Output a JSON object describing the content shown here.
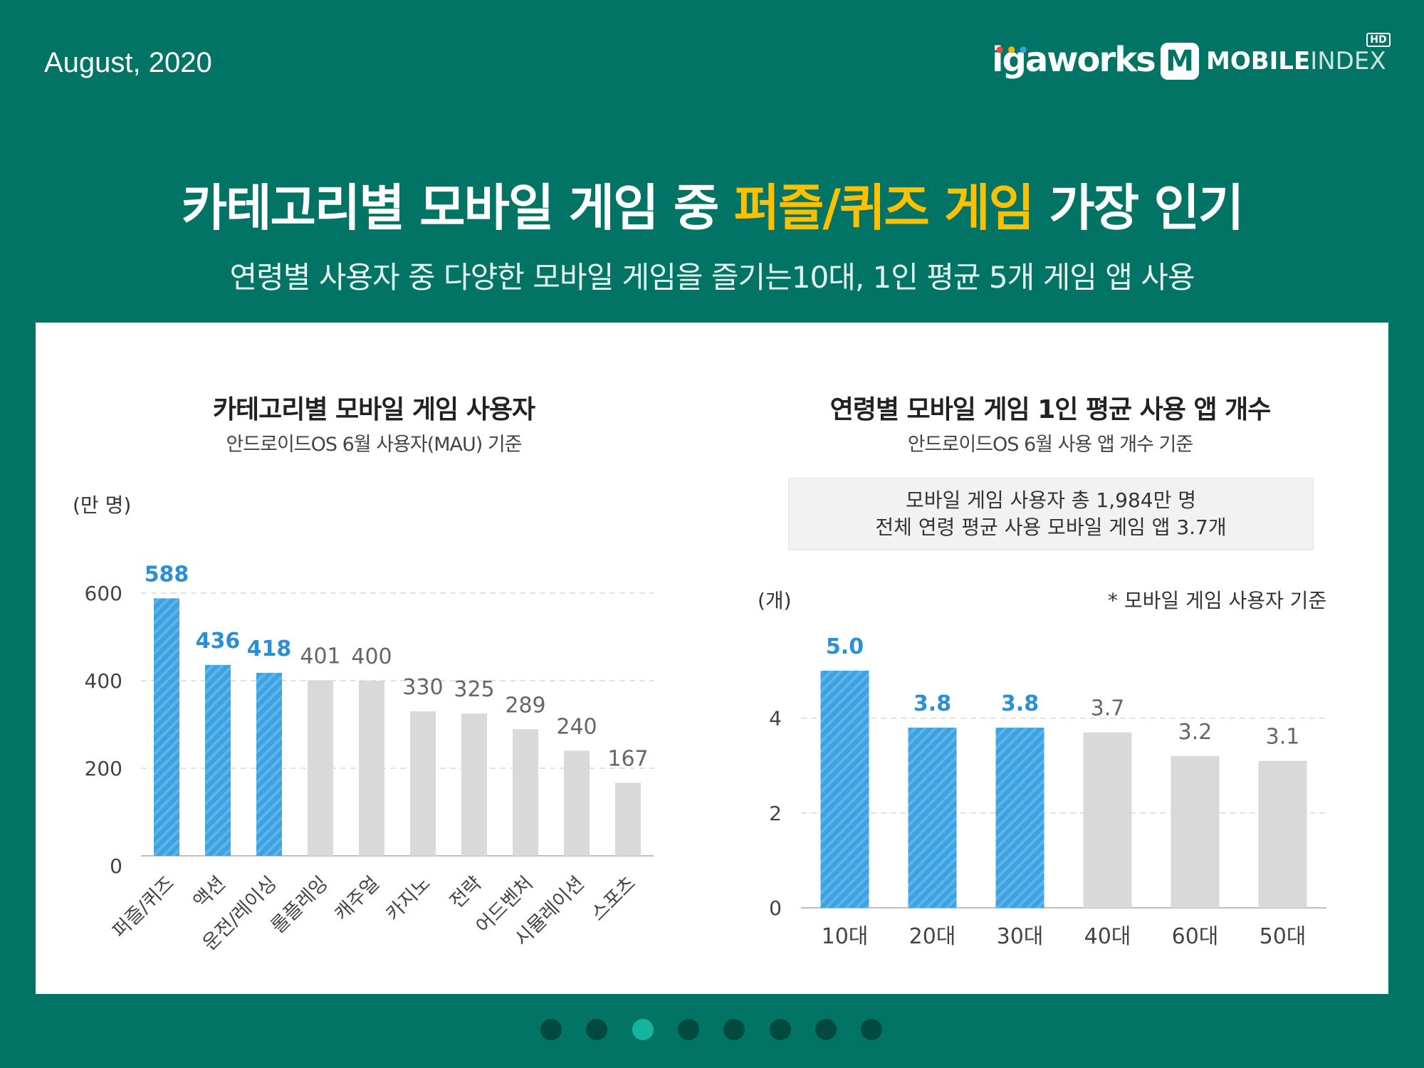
{
  "header": {
    "date": "August, 2020",
    "brand_left": "igaworks",
    "brand_right_mark": "M",
    "brand_right_bold": "MOBILE",
    "brand_right_light": "INDEX",
    "brand_right_badge": "HD"
  },
  "headline": {
    "part1": "카테고리별 모바일 게임 중 ",
    "highlight": "퍼즐/퀴즈 게임",
    "part2": " 가장 인기"
  },
  "subline": "연령별 사용자 중 다양한 모바일 게임을 즐기는10대, 1인 평균 5개 게임 앱 사용",
  "colors": {
    "background": "#027465",
    "highlight": "#ffc000",
    "blue_bar": "#3ca2e0",
    "blue_label": "#2b8fd6",
    "gray_bar": "#d9d9d9",
    "gray_label": "#666666"
  },
  "info_box": {
    "line1": "모바일 게임 사용자 총 1,984만 명",
    "line2": "전체 연령 평균 사용 모바일 게임 앱 3.7개"
  },
  "chart_data": [
    {
      "type": "bar",
      "title": "카테고리별 모바일 게임 사용자",
      "subtitle": "안드로이드OS 6월 사용자(MAU) 기준",
      "unit": "(만 명)",
      "categories": [
        "퍼즐/퀴즈",
        "액션",
        "운전/레이싱",
        "롤플레잉",
        "캐주얼",
        "카지노",
        "전략",
        "어드벤처",
        "시뮬레이션",
        "스포츠"
      ],
      "values": [
        588,
        436,
        418,
        401,
        400,
        330,
        325,
        289,
        240,
        167
      ],
      "highlighted": [
        true,
        true,
        true,
        false,
        false,
        false,
        false,
        false,
        false,
        false
      ],
      "yticks": [
        0,
        200,
        400,
        600
      ],
      "ylim": [
        0,
        640
      ],
      "grid": true
    },
    {
      "type": "bar",
      "title": "연령별 모바일 게임 1인 평균 사용 앱 개수",
      "subtitle": "안드로이드OS 6월 사용 앱 개수 기준",
      "unit": "(개)",
      "note": "* 모바일 게임 사용자 기준",
      "categories": [
        "10대",
        "20대",
        "30대",
        "40대",
        "60대",
        "50대"
      ],
      "values": [
        5.0,
        3.8,
        3.8,
        3.7,
        3.2,
        3.1
      ],
      "labels": [
        "5.0",
        "3.8",
        "3.8",
        "3.7",
        "3.2",
        "3.1"
      ],
      "highlighted": [
        true,
        true,
        true,
        false,
        false,
        false
      ],
      "yticks": [
        0,
        2,
        4
      ],
      "ylim": [
        0,
        5.8
      ],
      "grid": true
    }
  ],
  "pagination": {
    "count": 8,
    "active_index": 2
  }
}
